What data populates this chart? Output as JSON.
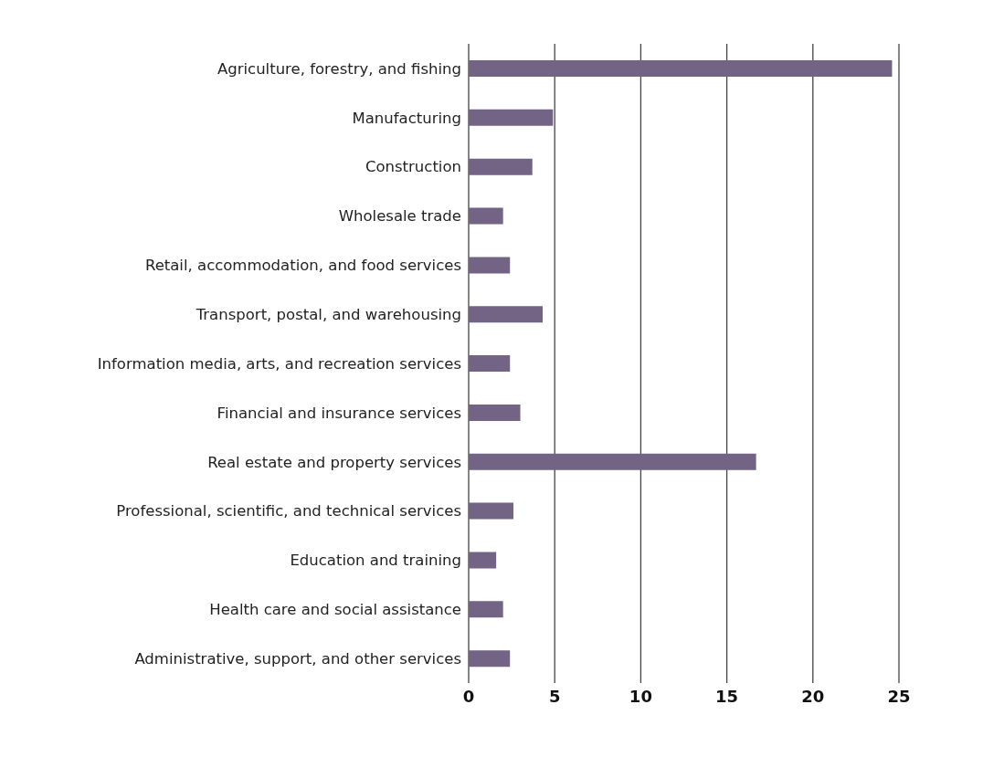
{
  "chart_data": {
    "type": "bar",
    "orientation": "horizontal",
    "categories": [
      "Agriculture, forestry, and fishing",
      "Manufacturing",
      "Construction",
      "Wholesale trade",
      "Retail, accommodation, and food services",
      "Transport, postal, and warehousing",
      "Information media, arts, and recreation services",
      "Financial and insurance services",
      "Real estate and property services",
      "Professional, scientific, and technical services",
      "Education and training",
      "Health care and social assistance",
      "Administrative, support, and other services"
    ],
    "values": [
      24.6,
      4.9,
      3.7,
      2.0,
      2.4,
      4.3,
      2.4,
      3.0,
      16.7,
      2.6,
      1.6,
      2.0,
      2.4
    ],
    "color": "#736384",
    "xlim": [
      0,
      25
    ],
    "xticks": [
      0,
      5,
      10,
      15,
      20,
      25
    ],
    "grid": "x"
  }
}
